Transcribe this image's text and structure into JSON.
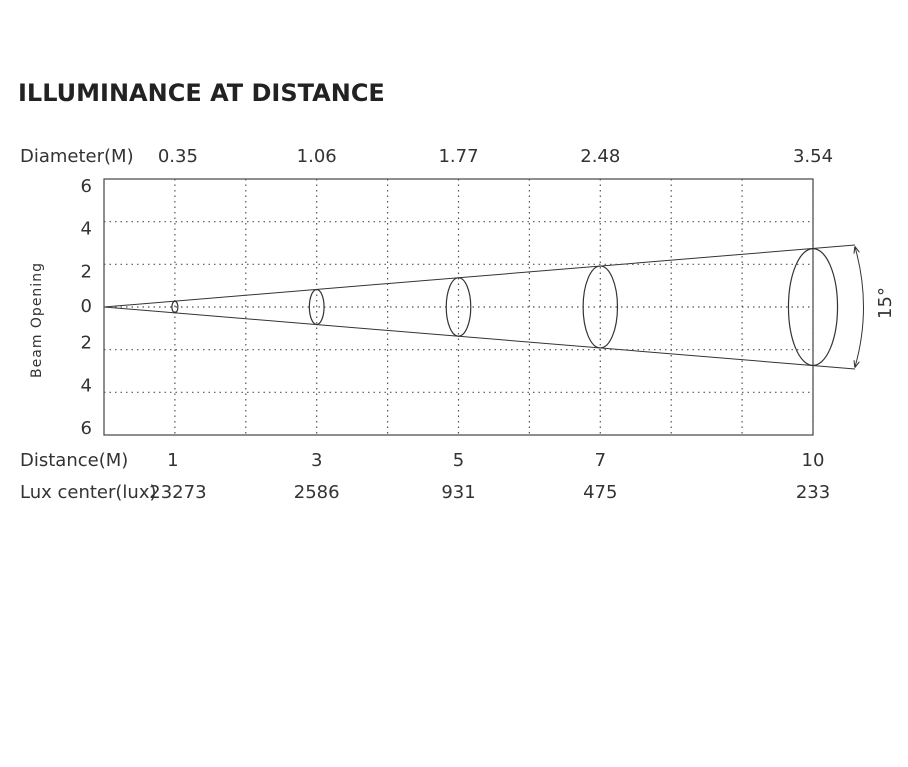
{
  "chart_data": {
    "type": "beam",
    "title": "ILLUMINANCE AT DISTANCE",
    "diameter_label": "Diameter(M)",
    "distance_label": "Distance(M)",
    "lux_label": "Lux center(lux)",
    "y_label": "Beam Opening",
    "beam_angle": "15°",
    "x": [
      1,
      3,
      5,
      7,
      10
    ],
    "diameter": [
      0.35,
      1.06,
      1.77,
      2.48,
      3.54
    ],
    "lux": [
      23273,
      2586,
      931,
      475,
      233
    ],
    "xlim": [
      0,
      10
    ],
    "ylim": [
      -6,
      6
    ],
    "yticks": [
      6,
      4,
      2,
      0,
      {
        "value": -2,
        "label": "2"
      },
      {
        "value": -4,
        "label": "4"
      },
      {
        "value": -6,
        "label": "6"
      }
    ],
    "grid": true
  }
}
